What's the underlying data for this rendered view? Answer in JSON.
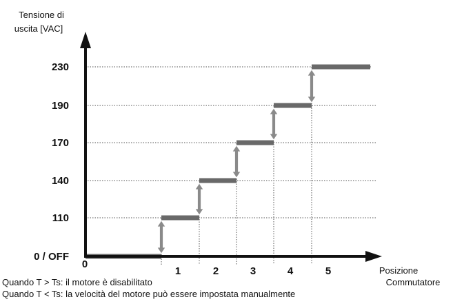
{
  "chart_data": {
    "type": "line",
    "title": "",
    "ylabel": [
      "Tensione di",
      "uscita [VAC]"
    ],
    "xlabel": [
      "Posizione",
      "Commutatore"
    ],
    "categories": [
      "0",
      "1",
      "2",
      "3",
      "4",
      "5"
    ],
    "y_tick_labels": [
      "0 / OFF",
      "110",
      "140",
      "170",
      "190",
      "230"
    ],
    "values": [
      0,
      110,
      140,
      170,
      190,
      230
    ],
    "series": [
      {
        "values": [
          0,
          110,
          140,
          170,
          190,
          230
        ],
        "color": "#696969"
      }
    ],
    "grid": true,
    "notes": [
      "Quando T > Ts: il motore è disabilitato",
      "Quando T < Ts: la velocità del motore può essere impostata manualmente"
    ]
  }
}
